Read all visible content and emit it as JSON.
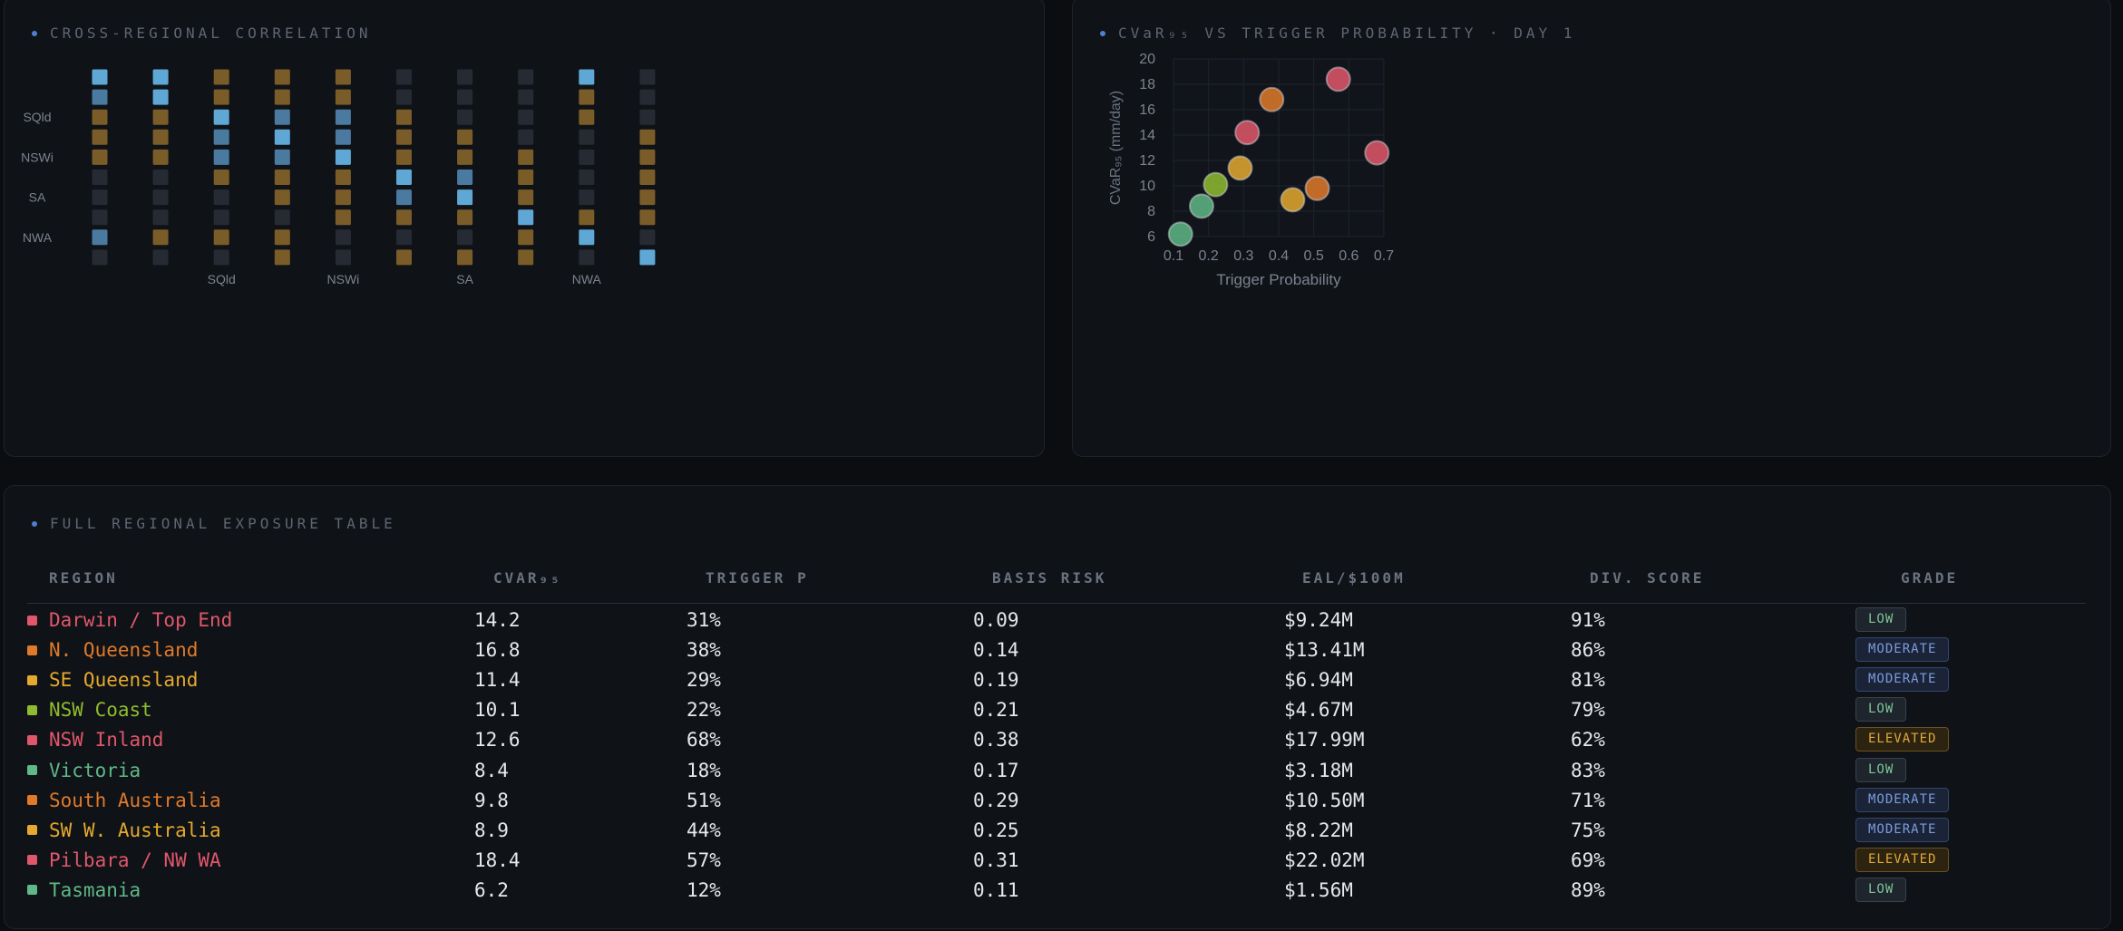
{
  "correlation": {
    "title": "CROSS-REGIONAL CORRELATION",
    "labels": [
      "",
      "",
      "SQld",
      "",
      "NSWi",
      "",
      "SA",
      "",
      "NWA",
      ""
    ],
    "colors": {
      "high": "#5fa8d6",
      "mid": "#4a7aa0",
      "warm": "#7a5c28",
      "neutral": "#262b33",
      "pos": "#6b5530"
    },
    "matrix": [
      [
        "H",
        "H",
        "W",
        "W",
        "W",
        "N",
        "N",
        "N",
        "H",
        "N"
      ],
      [
        "M",
        "H",
        "W",
        "W",
        "W",
        "N",
        "N",
        "N",
        "W",
        "N"
      ],
      [
        "W",
        "W",
        "H",
        "M",
        "M",
        "W",
        "N",
        "N",
        "W",
        "N"
      ],
      [
        "W",
        "W",
        "M",
        "H",
        "M",
        "W",
        "W",
        "N",
        "N",
        "W"
      ],
      [
        "W",
        "W",
        "M",
        "M",
        "H",
        "W",
        "W",
        "W",
        "N",
        "W"
      ],
      [
        "N",
        "N",
        "W",
        "W",
        "W",
        "H",
        "M",
        "W",
        "N",
        "W"
      ],
      [
        "N",
        "N",
        "N",
        "W",
        "W",
        "M",
        "H",
        "W",
        "N",
        "W"
      ],
      [
        "N",
        "N",
        "N",
        "N",
        "W",
        "W",
        "W",
        "H",
        "W",
        "W"
      ],
      [
        "M",
        "W",
        "W",
        "W",
        "N",
        "N",
        "N",
        "W",
        "H",
        "N"
      ],
      [
        "N",
        "N",
        "N",
        "W",
        "N",
        "W",
        "W",
        "W",
        "N",
        "H"
      ]
    ]
  },
  "chart_data": {
    "type": "scatter",
    "title": "CVaR₉₅ VS TRIGGER PROBABILITY · DAY 1",
    "xlabel": "Trigger Probability",
    "ylabel": "CVaR₉₅ (mm/day)",
    "xlim": [
      0.1,
      0.7
    ],
    "ylim": [
      6,
      20
    ],
    "xticks": [
      "0.1",
      "0.2",
      "0.3",
      "0.4",
      "0.5",
      "0.6",
      "0.7"
    ],
    "yticks": [
      "6",
      "8",
      "10",
      "12",
      "14",
      "16",
      "18",
      "20"
    ],
    "points": [
      {
        "region": "Darwin / Top End",
        "x": 0.31,
        "y": 14.2,
        "color": "#e0576b"
      },
      {
        "region": "N. Queensland",
        "x": 0.38,
        "y": 16.8,
        "color": "#e07a2a"
      },
      {
        "region": "SE Queensland",
        "x": 0.29,
        "y": 11.4,
        "color": "#e5a92e"
      },
      {
        "region": "NSW Coast",
        "x": 0.22,
        "y": 10.1,
        "color": "#8fbc2e"
      },
      {
        "region": "NSW Inland",
        "x": 0.68,
        "y": 12.6,
        "color": "#e0576b"
      },
      {
        "region": "Victoria",
        "x": 0.18,
        "y": 8.4,
        "color": "#5fb886"
      },
      {
        "region": "South Australia",
        "x": 0.51,
        "y": 9.8,
        "color": "#e07a2a"
      },
      {
        "region": "SW W. Australia",
        "x": 0.44,
        "y": 8.9,
        "color": "#e5a92e"
      },
      {
        "region": "Pilbara / NW WA",
        "x": 0.57,
        "y": 18.4,
        "color": "#e0576b"
      },
      {
        "region": "Tasmania",
        "x": 0.12,
        "y": 6.2,
        "color": "#5fb886"
      }
    ]
  },
  "table": {
    "title": "FULL REGIONAL EXPOSURE TABLE",
    "headers": [
      "REGION",
      "CVAR₉₅",
      "TRIGGER P",
      "BASIS RISK",
      "EAL/$100M",
      "DIV. SCORE",
      "GRADE"
    ],
    "rows": [
      {
        "region": "Darwin / Top End",
        "color": "#e0576b",
        "cvar": "14.2",
        "trigger": "31%",
        "basis": "0.09",
        "eal": "$9.24M",
        "div": "91%",
        "grade": "LOW",
        "grade_class": "low"
      },
      {
        "region": "N. Queensland",
        "color": "#e07a2a",
        "cvar": "16.8",
        "trigger": "38%",
        "basis": "0.14",
        "eal": "$13.41M",
        "div": "86%",
        "grade": "MODERATE",
        "grade_class": "moderate"
      },
      {
        "region": "SE Queensland",
        "color": "#e5a92e",
        "cvar": "11.4",
        "trigger": "29%",
        "basis": "0.19",
        "eal": "$6.94M",
        "div": "81%",
        "grade": "MODERATE",
        "grade_class": "moderate"
      },
      {
        "region": "NSW Coast",
        "color": "#8fbc2e",
        "cvar": "10.1",
        "trigger": "22%",
        "basis": "0.21",
        "eal": "$4.67M",
        "div": "79%",
        "grade": "LOW",
        "grade_class": "low"
      },
      {
        "region": "NSW Inland",
        "color": "#e0576b",
        "cvar": "12.6",
        "trigger": "68%",
        "basis": "0.38",
        "eal": "$17.99M",
        "div": "62%",
        "grade": "ELEVATED",
        "grade_class": "elevated"
      },
      {
        "region": "Victoria",
        "color": "#5fb886",
        "cvar": "8.4",
        "trigger": "18%",
        "basis": "0.17",
        "eal": "$3.18M",
        "div": "83%",
        "grade": "LOW",
        "grade_class": "low"
      },
      {
        "region": "South Australia",
        "color": "#e07a2a",
        "cvar": "9.8",
        "trigger": "51%",
        "basis": "0.29",
        "eal": "$10.50M",
        "div": "71%",
        "grade": "MODERATE",
        "grade_class": "moderate"
      },
      {
        "region": "SW W. Australia",
        "color": "#e5a92e",
        "cvar": "8.9",
        "trigger": "44%",
        "basis": "0.25",
        "eal": "$8.22M",
        "div": "75%",
        "grade": "MODERATE",
        "grade_class": "moderate"
      },
      {
        "region": "Pilbara / NW WA",
        "color": "#e0576b",
        "cvar": "18.4",
        "trigger": "57%",
        "basis": "0.31",
        "eal": "$22.02M",
        "div": "69%",
        "grade": "ELEVATED",
        "grade_class": "elevated"
      },
      {
        "region": "Tasmania",
        "color": "#5fb886",
        "cvar": "6.2",
        "trigger": "12%",
        "basis": "0.11",
        "eal": "$1.56M",
        "div": "89%",
        "grade": "LOW",
        "grade_class": "low"
      }
    ]
  }
}
